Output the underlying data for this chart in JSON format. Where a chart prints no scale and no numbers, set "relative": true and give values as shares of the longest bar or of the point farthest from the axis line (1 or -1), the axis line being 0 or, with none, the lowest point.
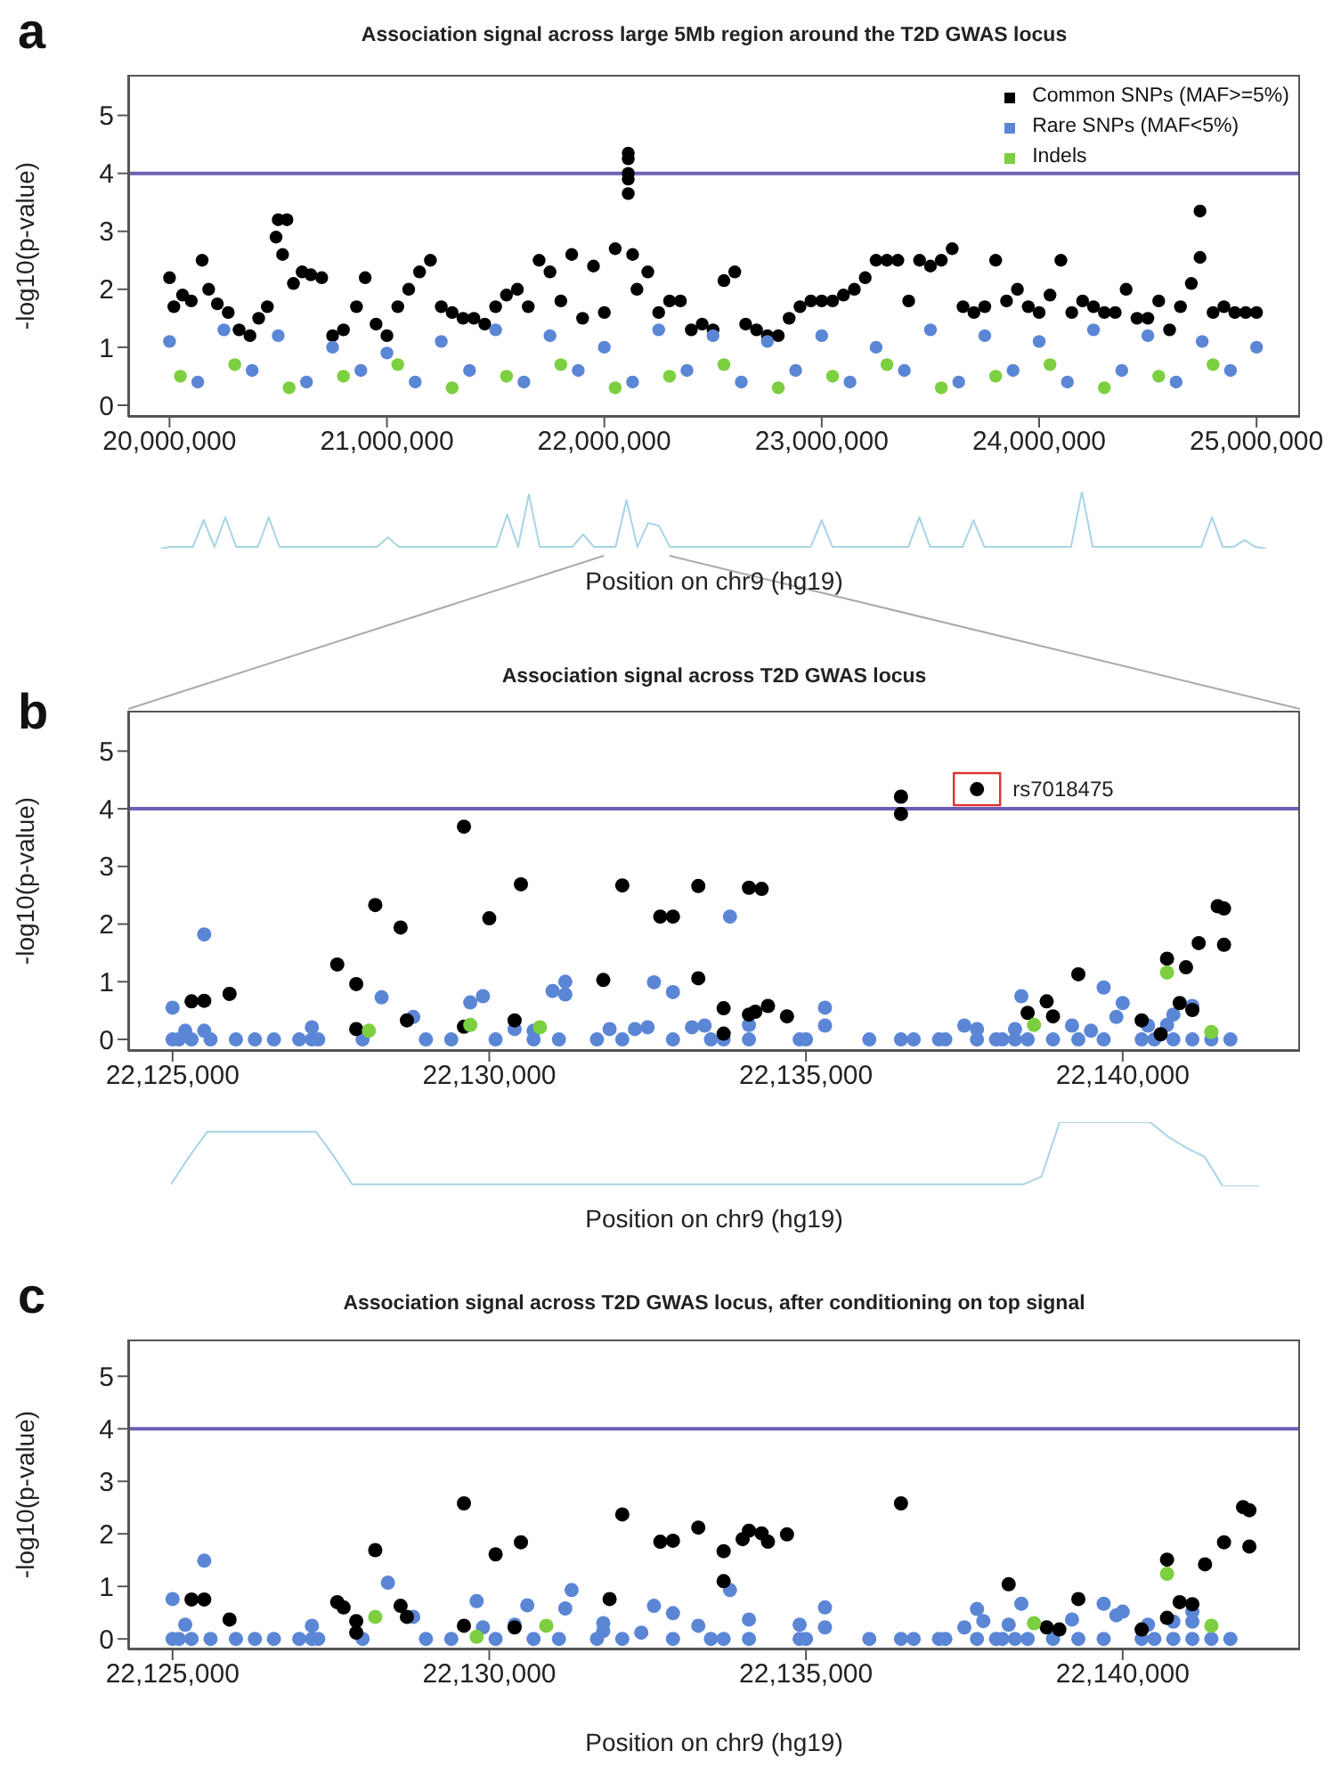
{
  "chart_data": [
    {
      "type": "scatter",
      "title": "Association signal across large 5Mb region around the T2D GWAS locus",
      "ylabel": "-log10(p-value)",
      "xlabel": "Position on chr9 (hg19)",
      "annotations": [
        "a"
      ],
      "marker": "circle",
      "legend": "top right",
      "xlim": [
        19810000,
        25200000
      ],
      "ylim": [
        -0.2,
        5.7
      ],
      "xticks": [
        {
          "value": 20000000,
          "label": "20,000,000"
        },
        {
          "value": 21000000,
          "label": "21,000,000"
        },
        {
          "value": 22000000,
          "label": "22,000,000"
        },
        {
          "value": 23000000,
          "label": "23,000,000"
        },
        {
          "value": 24000000,
          "label": "24,000,000"
        },
        {
          "value": 25000000,
          "label": "25,000,000"
        }
      ],
      "yticks": [
        0,
        1,
        2,
        3,
        4,
        5
      ],
      "ref_lines": [
        {
          "axis": "y",
          "value": 4,
          "color": "#6c5fb5"
        }
      ],
      "series": [
        {
          "name": "Common SNPs (MAF>=5%)",
          "color": "#000000",
          "x": [
            20000000,
            20020000,
            20060000,
            20100000,
            20150000,
            20180000,
            20220000,
            20270000,
            20320000,
            20370000,
            20410000,
            20450000,
            20490000,
            20500000,
            20520000,
            20540000,
            20570000,
            20610000,
            20650000,
            20700000,
            20750000,
            20800000,
            20860000,
            20900000,
            20950000,
            21000000,
            21050000,
            21100000,
            21150000,
            21200000,
            21250000,
            21300000,
            21350000,
            21400000,
            21450000,
            21500000,
            21550000,
            21600000,
            21650000,
            21700000,
            21750000,
            21800000,
            21850000,
            21900000,
            21950000,
            22000000,
            22050000,
            22110000,
            22110000,
            22110000,
            22110000,
            22110000,
            22130000,
            22150000,
            22200000,
            22250000,
            22300000,
            22350000,
            22400000,
            22450000,
            22500000,
            22550000,
            22600000,
            22650000,
            22700000,
            22750000,
            22800000,
            22850000,
            22900000,
            22950000,
            23000000,
            23050000,
            23100000,
            23150000,
            23200000,
            23250000,
            23300000,
            23350000,
            23400000,
            23450000,
            23500000,
            23550000,
            23600000,
            23650000,
            23700000,
            23750000,
            23800000,
            23850000,
            23900000,
            23950000,
            24000000,
            24050000,
            24100000,
            24150000,
            24200000,
            24250000,
            24300000,
            24350000,
            24400000,
            24450000,
            24500000,
            24550000,
            24600000,
            24650000,
            24700000,
            24740000,
            24740000,
            24800000,
            24850000,
            24900000,
            24950000,
            25000000
          ],
          "values": [
            2.2,
            1.7,
            1.9,
            1.8,
            2.5,
            2.0,
            1.75,
            1.6,
            1.3,
            1.2,
            1.5,
            1.7,
            2.9,
            3.2,
            2.6,
            3.2,
            2.1,
            2.3,
            2.25,
            2.2,
            1.2,
            1.3,
            1.7,
            2.2,
            1.4,
            1.2,
            1.7,
            2.0,
            2.3,
            2.5,
            1.7,
            1.6,
            1.5,
            1.5,
            1.4,
            1.7,
            1.9,
            2.0,
            1.7,
            2.5,
            2.3,
            1.8,
            2.6,
            1.5,
            2.4,
            1.6,
            2.7,
            4.35,
            4.25,
            4.0,
            3.9,
            3.65,
            2.6,
            2.0,
            2.3,
            1.6,
            1.8,
            1.8,
            1.3,
            1.4,
            1.3,
            2.15,
            2.3,
            1.4,
            1.3,
            1.2,
            1.2,
            1.5,
            1.7,
            1.8,
            1.8,
            1.8,
            1.9,
            2.0,
            2.2,
            2.5,
            2.5,
            2.5,
            1.8,
            2.5,
            2.4,
            2.5,
            2.7,
            1.7,
            1.6,
            1.7,
            2.5,
            1.8,
            2.0,
            1.7,
            1.6,
            1.9,
            2.5,
            1.6,
            1.8,
            1.7,
            1.6,
            1.6,
            2.0,
            1.5,
            1.5,
            1.8,
            1.3,
            1.7,
            2.1,
            3.35,
            2.55,
            1.6,
            1.7,
            1.6,
            1.6,
            1.6
          ]
        },
        {
          "name": "Rare SNPs (MAF<5%)",
          "color": "#5b86d6",
          "x": [
            20000000,
            20250000,
            20500000,
            20750000,
            21000000,
            21250000,
            21500000,
            21750000,
            22000000,
            22250000,
            22500000,
            22750000,
            23000000,
            23250000,
            23500000,
            23750000,
            24000000,
            24250000,
            24500000,
            24750000,
            25000000,
            20130000,
            20380000,
            20630000,
            20880000,
            21130000,
            21380000,
            21630000,
            21880000,
            22130000,
            22380000,
            22630000,
            22880000,
            23130000,
            23380000,
            23630000,
            23880000,
            24130000,
            24380000,
            24630000,
            24880000
          ],
          "values": [
            1.1,
            1.3,
            1.2,
            1.0,
            0.9,
            1.1,
            1.3,
            1.2,
            1.0,
            1.3,
            1.2,
            1.1,
            1.2,
            1.0,
            1.3,
            1.2,
            1.1,
            1.3,
            1.2,
            1.1,
            1.0,
            0.4,
            0.6,
            0.4,
            0.6,
            0.4,
            0.6,
            0.4,
            0.6,
            0.4,
            0.6,
            0.4,
            0.6,
            0.4,
            0.6,
            0.4,
            0.6,
            0.4,
            0.6,
            0.4,
            0.6
          ]
        },
        {
          "name": "Indels",
          "color": "#7ccf3f",
          "x": [
            20050000,
            20300000,
            20550000,
            20800000,
            21050000,
            21300000,
            21550000,
            21800000,
            22050000,
            22300000,
            22550000,
            22800000,
            23050000,
            23300000,
            23550000,
            23800000,
            24050000,
            24300000,
            24550000,
            24800000
          ],
          "values": [
            0.5,
            0.7,
            0.3,
            0.5,
            0.7,
            0.3,
            0.5,
            0.7,
            0.3,
            0.5,
            0.7,
            0.3,
            0.5,
            0.7,
            0.3,
            0.5,
            0.7,
            0.3,
            0.5,
            0.7
          ]
        }
      ]
    },
    {
      "type": "line",
      "relative": true,
      "tick_labels": false,
      "categories": [
        null,
        null,
        null,
        null,
        null,
        null,
        null,
        null,
        null,
        null,
        null,
        null,
        null,
        null,
        null,
        null,
        null,
        null,
        null,
        null,
        null,
        null,
        null,
        null,
        null,
        null,
        null,
        null,
        null,
        null,
        null,
        null,
        null,
        null,
        null,
        null,
        null,
        null,
        null,
        null,
        null,
        null,
        null,
        null,
        null,
        null,
        null,
        null,
        null,
        null,
        null,
        null,
        null,
        null,
        null,
        null,
        null,
        null,
        null,
        null,
        null,
        null,
        null,
        null,
        null,
        null,
        null,
        null,
        null,
        null,
        null,
        null,
        null,
        null,
        null,
        null,
        null,
        null,
        null,
        null,
        null,
        null,
        null,
        null,
        null,
        null,
        null,
        null,
        null,
        null,
        null,
        null,
        null,
        null,
        null,
        null,
        null,
        null,
        null,
        null,
        null,
        null,
        null
      ],
      "series": [
        {
          "color": "#a8d4e6",
          "values": [
            0,
            0.03,
            0.03,
            0.03,
            0.5,
            0.03,
            0.55,
            0.03,
            0.03,
            0.03,
            0.55,
            0.03,
            0.03,
            0.03,
            0.03,
            0.03,
            0.03,
            0.03,
            0.03,
            0.03,
            0.03,
            0.2,
            0.03,
            0.03,
            0.03,
            0.03,
            0.03,
            0.03,
            0.03,
            0.03,
            0.03,
            0.03,
            0.6,
            0.03,
            0.95,
            0.03,
            0.03,
            0.03,
            0.03,
            0.25,
            0.03,
            0.03,
            0.03,
            0.85,
            0.03,
            0.45,
            0.4,
            0.03,
            0.03,
            0.03,
            0.03,
            0.03,
            0.03,
            0.03,
            0.03,
            0.03,
            0.03,
            0.03,
            0.03,
            0.03,
            0.03,
            0.5,
            0.03,
            0.03,
            0.03,
            0.03,
            0.03,
            0.03,
            0.03,
            0.03,
            0.55,
            0.03,
            0.03,
            0.03,
            0.03,
            0.5,
            0.03,
            0.03,
            0.03,
            0.03,
            0.03,
            0.03,
            0.03,
            0.03,
            0.03,
            1,
            0.03,
            0.03,
            0.03,
            0.03,
            0.03,
            0.03,
            0.03,
            0.03,
            0.03,
            0.03,
            0.03,
            0.55,
            0.03,
            0.03,
            0.15,
            0.03,
            0
          ]
        }
      ]
    },
    {
      "type": "scatter",
      "title": "Association signal across T2D GWAS locus",
      "ylabel": "-log10(p-value)",
      "xlabel": "Position on chr9 (hg19)",
      "annotations": [
        "b",
        {
          "text": "rs7018475",
          "x": 22137700,
          "y": 4.34
        }
      ],
      "marker": "circle",
      "xlim": [
        22124300,
        22142800
      ],
      "ylim": [
        -0.2,
        5.7
      ],
      "xticks": [
        {
          "value": 22125000,
          "label": "22,125,000"
        },
        {
          "value": 22130000,
          "label": "22,130,000"
        },
        {
          "value": 22135000,
          "label": "22,135,000"
        },
        {
          "value": 22140000,
          "label": "22,140,000"
        }
      ],
      "yticks": [
        0,
        1,
        2,
        3,
        4,
        5
      ],
      "ref_lines": [
        {
          "axis": "y",
          "value": 4,
          "color": "#6c5fb5"
        }
      ],
      "series": [
        {
          "color": "#5b86d6",
          "x": [
            22125000,
            22125500,
            22125200,
            22125500,
            22127200,
            22128300,
            22128800,
            22129700,
            22129900,
            22130400,
            22131000,
            22131200,
            22131200,
            22130700,
            22132600,
            22132900,
            22131900,
            22132300,
            22132500,
            22133200,
            22133400,
            22133800,
            22134100,
            22135300,
            22135300,
            22137500,
            22137700,
            22138300,
            22138400,
            22139200,
            22139500,
            22139700,
            22140000,
            22139900,
            22140400,
            22140800,
            22141100,
            22140700,
            22125000,
            22125100,
            22125300,
            22125600,
            22126000,
            22126300,
            22126600,
            22127000,
            22127200,
            22127300,
            22128000,
            22129000,
            22129400,
            22130100,
            22130700,
            22131100,
            22131700,
            22132100,
            22132900,
            22133500,
            22133700,
            22134100,
            22134900,
            22135000,
            22136000,
            22136500,
            22136700,
            22137100,
            22137200,
            22137700,
            22138000,
            22138100,
            22138300,
            22138500,
            22138900,
            22139300,
            22139700,
            22140300,
            22140500,
            22140800,
            22141100,
            22141400,
            22141700
          ],
          "values": [
            0.55,
            1.82,
            0.15,
            0.15,
            0.21,
            0.73,
            0.39,
            0.64,
            0.75,
            0.18,
            0.84,
            1.0,
            0.78,
            0.15,
            0.99,
            0.82,
            0.18,
            0.18,
            0.21,
            0.21,
            0.24,
            2.13,
            0.25,
            0.55,
            0.24,
            0.24,
            0.18,
            0.18,
            0.75,
            0.24,
            0.15,
            0.9,
            0.63,
            0.39,
            0.24,
            0.43,
            0.58,
            0.25,
            0,
            0,
            0,
            0,
            0,
            0,
            0,
            0,
            0,
            0,
            0,
            0,
            0,
            0,
            0,
            0,
            0,
            0,
            0,
            0,
            0,
            0,
            0,
            0,
            0,
            0,
            0,
            0,
            0,
            0,
            0,
            0,
            0,
            0,
            0,
            0,
            0,
            0,
            0,
            0,
            0,
            0,
            0
          ]
        },
        {
          "color": "#000000",
          "x": [
            22125300,
            22125500,
            22125900,
            22127600,
            22127900,
            22127900,
            22128200,
            22128600,
            22128700,
            22129600,
            22129600,
            22130000,
            22130400,
            22130500,
            22131800,
            22132100,
            22132700,
            22132900,
            22133300,
            22133300,
            22133700,
            22133700,
            22134100,
            22134300,
            22134100,
            22134200,
            22134400,
            22134700,
            22136500,
            22136500,
            22137700,
            22138500,
            22138800,
            22138900,
            22139300,
            22140300,
            22140600,
            22140700,
            22140900,
            22141000,
            22141100,
            22141200,
            22141500,
            22141600,
            22141600
          ],
          "values": [
            0.66,
            0.67,
            0.79,
            1.3,
            0.96,
            0.18,
            2.33,
            1.94,
            0.33,
            3.69,
            0.22,
            2.1,
            0.33,
            2.69,
            1.03,
            2.67,
            2.13,
            2.13,
            1.06,
            2.66,
            0.54,
            0.1,
            2.63,
            2.61,
            0.43,
            0.48,
            0.58,
            0.4,
            4.21,
            3.91,
            4.34,
            0.46,
            0.66,
            0.4,
            1.13,
            0.33,
            0.09,
            1.4,
            0.63,
            1.25,
            0.51,
            1.67,
            2.31,
            2.27,
            1.64
          ]
        },
        {
          "color": "#7ccf3f",
          "x": [
            22128100,
            22129700,
            22130800,
            22138600,
            22140700,
            22141400
          ],
          "values": [
            0.15,
            0.25,
            0.21,
            0.25,
            1.16,
            0.13
          ]
        }
      ]
    },
    {
      "type": "line",
      "relative": true,
      "tick_labels": false,
      "categories": [
        null,
        null,
        null,
        null,
        null,
        null,
        null,
        null,
        null,
        null,
        null,
        null,
        null,
        null,
        null,
        null,
        null,
        null,
        null,
        null,
        null,
        null,
        null,
        null,
        null,
        null,
        null,
        null,
        null,
        null,
        null,
        null,
        null,
        null,
        null,
        null,
        null,
        null,
        null,
        null,
        null,
        null,
        null,
        null,
        null,
        null,
        null,
        null,
        null,
        null,
        null,
        null,
        null,
        null,
        null,
        null,
        null,
        null,
        null,
        null,
        null
      ],
      "series": [
        {
          "color": "#a8d4e6",
          "values": [
            0.03,
            0.46,
            0.85,
            0.85,
            0.85,
            0.85,
            0.85,
            0.85,
            0.85,
            0.46,
            0.03,
            0.03,
            0.03,
            0.03,
            0.03,
            0.03,
            0.03,
            0.03,
            0.03,
            0.03,
            0.03,
            0.03,
            0.03,
            0.03,
            0.03,
            0.03,
            0.03,
            0.03,
            0.03,
            0.03,
            0.03,
            0.03,
            0.03,
            0.03,
            0.03,
            0.03,
            0.03,
            0.03,
            0.03,
            0.03,
            0.03,
            0.03,
            0.03,
            0.03,
            0.03,
            0.03,
            0.03,
            0.03,
            0.15,
            1,
            1,
            1,
            1,
            1,
            1,
            0.77,
            0.6,
            0.46,
            0,
            0,
            0
          ]
        }
      ]
    },
    {
      "type": "scatter",
      "title": "Association signal across T2D GWAS locus, after conditioning on top signal",
      "ylabel": "-log10(p-value)",
      "xlabel": "Position on chr9 (hg19)",
      "annotations": [
        "c"
      ],
      "marker": "circle",
      "xlim": [
        22124300,
        22142800
      ],
      "ylim": [
        -0.2,
        5.7
      ],
      "xticks": [
        {
          "value": 22125000,
          "label": "22,125,000"
        },
        {
          "value": 22130000,
          "label": "22,130,000"
        },
        {
          "value": 22135000,
          "label": "22,135,000"
        },
        {
          "value": 22140000,
          "label": "22,140,000"
        }
      ],
      "yticks": [
        0,
        1,
        2,
        3,
        4,
        5
      ],
      "ref_lines": [
        {
          "axis": "y",
          "value": 4,
          "color": "#6c5fb5"
        }
      ],
      "series": [
        {
          "color": "#5b86d6",
          "x": [
            22125000,
            22125500,
            22125200,
            22127200,
            22128400,
            22128800,
            22129800,
            22129900,
            22130400,
            22130600,
            22131200,
            22131300,
            22131800,
            22131800,
            22132600,
            22132900,
            22132400,
            22133300,
            22133800,
            22134100,
            22134900,
            22135300,
            22135300,
            22137500,
            22137700,
            22137800,
            22138200,
            22138400,
            22139200,
            22139700,
            22139900,
            22140000,
            22140400,
            22140800,
            22141100,
            22141100,
            22125000,
            22125100,
            22125300,
            22125600,
            22126000,
            22126300,
            22126600,
            22127000,
            22127200,
            22127300,
            22128000,
            22129000,
            22129400,
            22130100,
            22130700,
            22131100,
            22131700,
            22132100,
            22132900,
            22133500,
            22133700,
            22134100,
            22134900,
            22135000,
            22136000,
            22136500,
            22136700,
            22137100,
            22137200,
            22137700,
            22138000,
            22138100,
            22138300,
            22138500,
            22138900,
            22139300,
            22139700,
            22140300,
            22140500,
            22140800,
            22141100,
            22141400,
            22141700
          ],
          "values": [
            0.76,
            1.49,
            0.27,
            0.25,
            1.07,
            0.42,
            0.72,
            0.22,
            0.27,
            0.64,
            0.58,
            0.93,
            0.3,
            0.15,
            0.63,
            0.49,
            0.12,
            0.25,
            0.93,
            0.37,
            0.27,
            0.6,
            0.22,
            0.22,
            0.57,
            0.34,
            0.27,
            0.67,
            0.37,
            0.67,
            0.45,
            0.52,
            0.27,
            0.33,
            0.33,
            0.52,
            0,
            0,
            0,
            0,
            0,
            0,
            0,
            0,
            0,
            0,
            0,
            0,
            0,
            0,
            0,
            0,
            0,
            0,
            0,
            0,
            0,
            0,
            0,
            0,
            0,
            0,
            0,
            0,
            0,
            0,
            0,
            0,
            0,
            0,
            0,
            0,
            0,
            0,
            0,
            0,
            0,
            0,
            0
          ]
        },
        {
          "color": "#000000",
          "x": [
            22125300,
            22125500,
            22125900,
            22127600,
            22127700,
            22127900,
            22127900,
            22128200,
            22128600,
            22128700,
            22129600,
            22129600,
            22130100,
            22130400,
            22130500,
            22131900,
            22132100,
            22132700,
            22132900,
            22133300,
            22133700,
            22133700,
            22134000,
            22134100,
            22134300,
            22134400,
            22134700,
            22136500,
            22138200,
            22138800,
            22139000,
            22139300,
            22140300,
            22140700,
            22140700,
            22140900,
            22141100,
            22141300,
            22141600,
            22141900,
            22142000,
            22142000
          ],
          "values": [
            0.75,
            0.75,
            0.37,
            0.7,
            0.6,
            0.34,
            0.12,
            1.69,
            0.63,
            0.42,
            2.58,
            0.25,
            1.61,
            0.22,
            1.84,
            0.76,
            2.37,
            1.85,
            1.87,
            2.12,
            1.67,
            1.1,
            1.9,
            2.06,
            2.01,
            1.85,
            1.99,
            2.58,
            1.04,
            0.22,
            0.18,
            0.76,
            0.18,
            1.51,
            0.4,
            0.7,
            0.66,
            1.42,
            1.84,
            2.51,
            2.45,
            1.76
          ]
        },
        {
          "color": "#7ccf3f",
          "x": [
            22128200,
            22129800,
            22130900,
            22138600,
            22140700,
            22141400
          ],
          "values": [
            0.42,
            0.04,
            0.25,
            0.3,
            1.24,
            0.25
          ]
        }
      ]
    }
  ]
}
